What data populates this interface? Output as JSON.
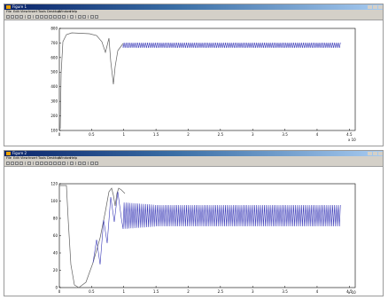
{
  "window1": {
    "title": "Figure 1",
    "menus": [
      "File",
      "Edit",
      "View",
      "Insert",
      "Tools",
      "Desktop",
      "Window",
      "Help"
    ]
  },
  "window2": {
    "title": "Figure 2",
    "menus": [
      "File",
      "Edit",
      "View",
      "Insert",
      "Tools",
      "Desktop",
      "Window",
      "Help"
    ]
  },
  "colors": {
    "signal": "#3a3ab8",
    "transient": "#606060",
    "axis": "#000000"
  },
  "plot1": {
    "x_exponent": "x 10",
    "x_ticks": [
      "0",
      "0.5",
      "1",
      "1.5",
      "2",
      "2.5",
      "3",
      "3.5",
      "4",
      "4.5"
    ],
    "y_ticks": [
      "100",
      "200",
      "300",
      "400",
      "500",
      "600",
      "700",
      "800"
    ]
  },
  "plot2": {
    "x_exponent": "x 10",
    "x_ticks": [
      "0",
      "0.5",
      "1",
      "1.5",
      "2",
      "2.5",
      "3",
      "3.5",
      "4",
      "4.5"
    ],
    "y_ticks": [
      "0",
      "20",
      "40",
      "60",
      "80",
      "100",
      "120"
    ]
  }
}
